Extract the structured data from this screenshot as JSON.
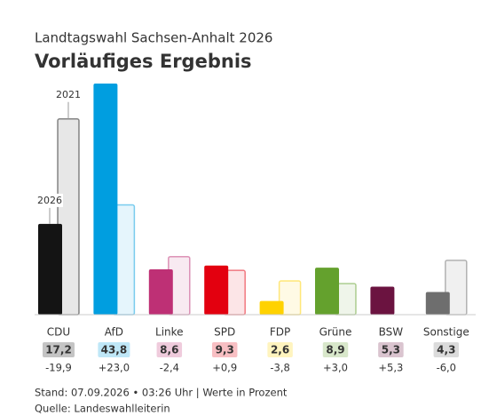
{
  "chart_data": {
    "type": "bar",
    "subtitle": "Landtagswahl Sachsen-Anhalt 2026",
    "title": "Vorläufiges Ergebnis",
    "categories": [
      "CDU",
      "AfD",
      "Linke",
      "SPD",
      "FDP",
      "Grüne",
      "BSW",
      "Sonstige"
    ],
    "colors": [
      "#141414",
      "#009ee0",
      "#be3075",
      "#e3000f",
      "#ffd200",
      "#64a12d",
      "#6b1340",
      "#6e6e6e"
    ],
    "series": [
      {
        "name": "2026",
        "values": [
          17.2,
          43.8,
          8.6,
          9.3,
          2.6,
          8.9,
          5.3,
          4.3
        ],
        "value_labels": [
          "17,2",
          "43,8",
          "8,6",
          "9,3",
          "2,6",
          "8,9",
          "5,3",
          "4,3"
        ]
      },
      {
        "name": "2021",
        "values": [
          37.1,
          20.8,
          11.0,
          8.4,
          6.4,
          5.9,
          null,
          10.3
        ]
      }
    ],
    "changes": [
      {
        "value": -19.9,
        "label": "-19,9"
      },
      {
        "value": 23.0,
        "label": "+23,0"
      },
      {
        "value": -2.4,
        "label": "-2,4"
      },
      {
        "value": 0.9,
        "label": "+0,9"
      },
      {
        "value": -3.8,
        "label": "-3,8"
      },
      {
        "value": 3.0,
        "label": "+3,0"
      },
      {
        "value": 5.3,
        "label": "+5,3"
      },
      {
        "value": -6.0,
        "label": "-6,0"
      }
    ],
    "footnotes": [
      "Stand: 07.09.2026 • 03:26 Uhr | Werte in Prozent",
      "Quelle: Landeswahlleiterin"
    ]
  }
}
